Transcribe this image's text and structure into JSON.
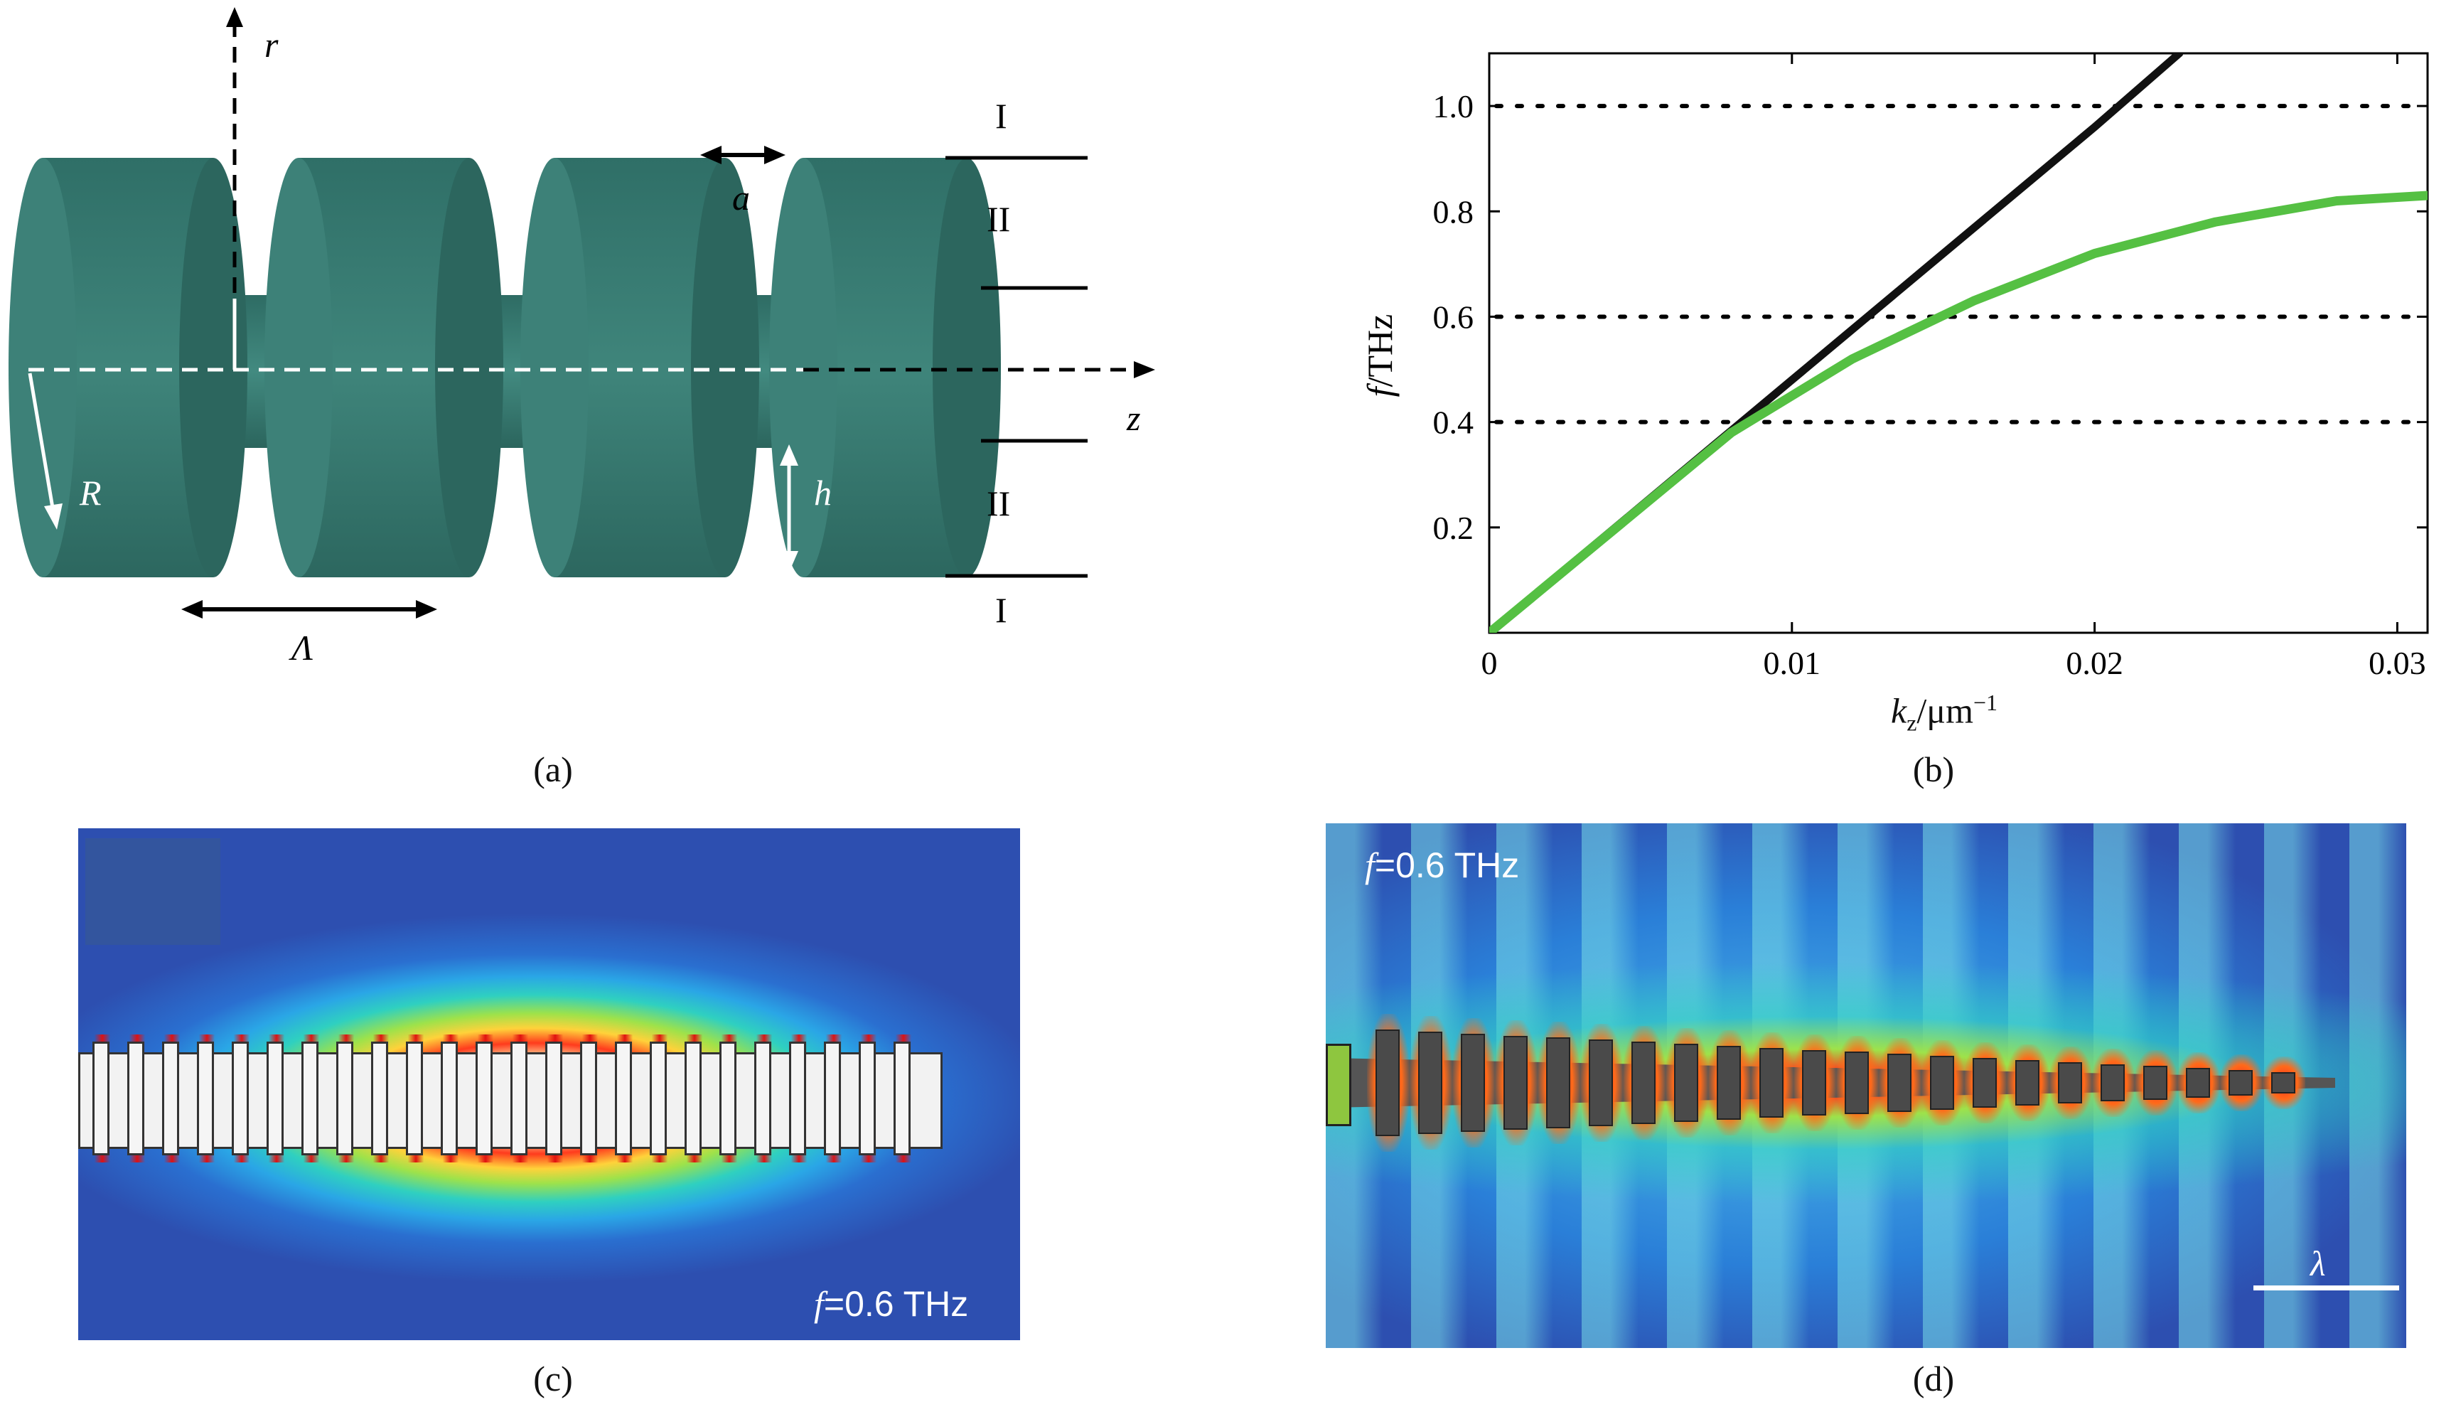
{
  "panel_a": {
    "caption": "(a)",
    "labels": {
      "r": "r",
      "z": "z",
      "R": "R",
      "h": "h",
      "a": "a",
      "Lambda": "Λ",
      "region_I": "I",
      "region_II": "II"
    },
    "colors": {
      "disk": "#3b7b72",
      "disk_front": "#2f6e66",
      "disk_side": "#498b82",
      "axis": "#ffffff"
    }
  },
  "panel_b": {
    "caption": "(b)",
    "chart_data": {
      "type": "line",
      "xlabel": "k_z/μm^-1",
      "ylabel": "f/THz",
      "xlim": [
        0,
        0.031
      ],
      "ylim": [
        0,
        1.1
      ],
      "x_ticks": [
        "0",
        "0.01",
        "0.02",
        "0.03"
      ],
      "y_ticks": [
        "0.2",
        "0.4",
        "0.6",
        "0.8",
        "1.0"
      ],
      "hlines": [
        0.4,
        0.6,
        1.0
      ],
      "series": [
        {
          "color": "#111111",
          "x": [
            0,
            0.005,
            0.01,
            0.015,
            0.02,
            0.0228
          ],
          "y": [
            0.0,
            0.24,
            0.48,
            0.72,
            0.96,
            1.1
          ]
        },
        {
          "color": "#55c043",
          "x": [
            0,
            0.004,
            0.008,
            0.012,
            0.016,
            0.02,
            0.024,
            0.028,
            0.031
          ],
          "y": [
            0.0,
            0.19,
            0.38,
            0.52,
            0.63,
            0.72,
            0.78,
            0.82,
            0.83
          ]
        }
      ],
      "grid": false
    }
  },
  "panel_c": {
    "caption": "(c)",
    "annotation_f": "f",
    "annotation_rest": "=0.6 THz"
  },
  "panel_d": {
    "caption": "(d)",
    "annotation_f": "f",
    "annotation_rest": "=0.6 THz",
    "scale_label": "λ"
  }
}
